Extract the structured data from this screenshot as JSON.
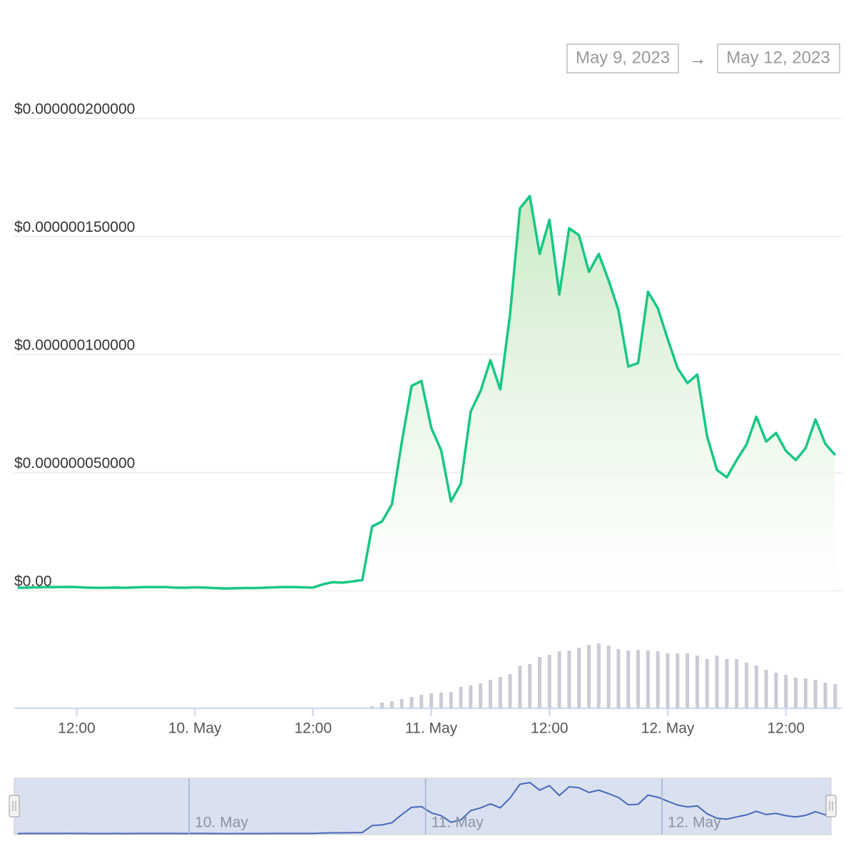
{
  "range_from": "May 9, 2023",
  "range_arrow": "→",
  "range_to": "May 12, 2023",
  "chart_data": {
    "type": "line",
    "x": [
      "2023-05-09 06:00",
      "2023-05-09 07:00",
      "2023-05-09 08:00",
      "2023-05-09 09:00",
      "2023-05-09 10:00",
      "2023-05-09 11:00",
      "2023-05-09 12:00",
      "2023-05-09 13:00",
      "2023-05-09 14:00",
      "2023-05-09 15:00",
      "2023-05-09 16:00",
      "2023-05-09 17:00",
      "2023-05-09 18:00",
      "2023-05-09 19:00",
      "2023-05-09 20:00",
      "2023-05-09 21:00",
      "2023-05-09 22:00",
      "2023-05-09 23:00",
      "2023-05-10 00:00",
      "2023-05-10 01:00",
      "2023-05-10 02:00",
      "2023-05-10 03:00",
      "2023-05-10 04:00",
      "2023-05-10 05:00",
      "2023-05-10 06:00",
      "2023-05-10 07:00",
      "2023-05-10 08:00",
      "2023-05-10 09:00",
      "2023-05-10 10:00",
      "2023-05-10 11:00",
      "2023-05-10 12:00",
      "2023-05-10 13:00",
      "2023-05-10 14:00",
      "2023-05-10 15:00",
      "2023-05-10 16:00",
      "2023-05-10 17:00",
      "2023-05-10 18:00",
      "2023-05-10 19:00",
      "2023-05-10 20:00",
      "2023-05-10 21:00",
      "2023-05-10 22:00",
      "2023-05-10 23:00",
      "2023-05-11 00:00",
      "2023-05-11 01:00",
      "2023-05-11 02:00",
      "2023-05-11 03:00",
      "2023-05-11 04:00",
      "2023-05-11 05:00",
      "2023-05-11 06:00",
      "2023-05-11 07:00",
      "2023-05-11 08:00",
      "2023-05-11 09:00",
      "2023-05-11 10:00",
      "2023-05-11 11:00",
      "2023-05-11 12:00",
      "2023-05-11 13:00",
      "2023-05-11 14:00",
      "2023-05-11 15:00",
      "2023-05-11 16:00",
      "2023-05-11 17:00",
      "2023-05-11 18:00",
      "2023-05-11 19:00",
      "2023-05-11 20:00",
      "2023-05-11 21:00",
      "2023-05-11 22:00",
      "2023-05-11 23:00",
      "2023-05-12 00:00",
      "2023-05-12 01:00",
      "2023-05-12 02:00",
      "2023-05-12 03:00",
      "2023-05-12 04:00",
      "2023-05-12 05:00",
      "2023-05-12 06:00",
      "2023-05-12 07:00",
      "2023-05-12 08:00",
      "2023-05-12 09:00",
      "2023-05-12 10:00",
      "2023-05-12 11:00",
      "2023-05-12 12:00",
      "2023-05-12 13:00",
      "2023-05-12 14:00",
      "2023-05-12 15:00",
      "2023-05-12 16:00",
      "2023-05-12 17:00"
    ],
    "series": [
      {
        "color": "#16c784",
        "values": [
          1.2e-09,
          1.3e-09,
          1.4e-09,
          1.5e-09,
          1.5e-09,
          1.6e-09,
          1.5e-09,
          1.3e-09,
          1.2e-09,
          1.2e-09,
          1.3e-09,
          1.2e-09,
          1.4e-09,
          1.5e-09,
          1.5e-09,
          1.5e-09,
          1.3e-09,
          1.2e-09,
          1.4e-09,
          1.3e-09,
          1.1e-09,
          9e-10,
          1e-09,
          1.1e-09,
          1.1e-09,
          1.2e-09,
          1.4e-09,
          1.5e-09,
          1.5e-09,
          1.4e-09,
          1.3e-09,
          2.7e-09,
          3.6e-09,
          3.4e-09,
          3.9e-09,
          4.5e-09,
          2.72e-08,
          2.93e-08,
          3.66e-08,
          6.28e-08,
          8.67e-08,
          8.88e-08,
          6.89e-08,
          5.95e-08,
          3.78e-08,
          4.53e-08,
          7.58e-08,
          8.46e-08,
          9.76e-08,
          8.52e-08,
          1.172e-07,
          1.619e-07,
          1.671e-07,
          1.426e-07,
          1.571e-07,
          1.254e-07,
          1.535e-07,
          1.505e-07,
          1.35e-07,
          1.426e-07,
          1.314e-07,
          1.187e-07,
          9.49e-08,
          9.64e-08,
          1.266e-07,
          1.196e-07,
          1.066e-07,
          9.43e-08,
          8.79e-08,
          9.15e-08,
          6.53e-08,
          5.11e-08,
          4.8e-08,
          5.53e-08,
          6.19e-08,
          7.37e-08,
          6.31e-08,
          6.68e-08,
          5.92e-08,
          5.53e-08,
          6.04e-08,
          7.25e-08,
          6.22e-08,
          5.74e-08
        ]
      },
      {
        "color": "#c9cbd6",
        "axis": "y2",
        "type": "bar",
        "values": [
          1,
          1,
          1,
          1,
          1,
          0,
          0,
          0,
          0,
          0,
          0,
          0,
          0,
          0,
          0,
          0,
          0,
          0,
          0,
          0,
          0,
          0,
          0,
          0,
          0,
          0,
          0,
          0,
          0,
          0,
          0,
          0,
          0,
          0,
          0,
          0,
          3,
          8,
          10,
          13,
          16,
          19,
          21,
          22,
          23,
          30,
          32,
          35,
          40,
          44,
          48,
          60,
          62,
          72,
          75,
          80,
          81,
          85,
          89,
          91,
          88,
          83,
          81,
          82,
          81,
          80,
          77,
          77,
          77,
          74,
          69,
          74,
          69,
          69,
          64,
          60,
          54,
          50,
          47,
          43,
          42,
          40,
          36,
          34
        ]
      }
    ],
    "xlim": [
      "2023-05-09 05:40",
      "2023-05-12 17:40"
    ],
    "xticks": [
      {
        "value": "2023-05-09 12:00",
        "label": "12:00"
      },
      {
        "value": "2023-05-10 00:00",
        "label": "10. May"
      },
      {
        "value": "2023-05-10 12:00",
        "label": "12:00"
      },
      {
        "value": "2023-05-11 00:00",
        "label": "11. May"
      },
      {
        "value": "2023-05-11 12:00",
        "label": "12:00"
      },
      {
        "value": "2023-05-12 00:00",
        "label": "12. May"
      },
      {
        "value": "2023-05-12 12:00",
        "label": "12:00"
      }
    ],
    "ylim": [
      0,
      2e-07
    ],
    "yticks": [
      {
        "value": 0,
        "label": "$0.00"
      },
      {
        "value": 5e-08,
        "label": "$0.000000050000"
      },
      {
        "value": 1e-07,
        "label": "$0.000000100000"
      },
      {
        "value": 1.5e-07,
        "label": "$0.000000150000"
      },
      {
        "value": 2e-07,
        "label": "$0.000000200000"
      }
    ],
    "y2lim": [
      0,
      100
    ],
    "grid": true
  }
}
